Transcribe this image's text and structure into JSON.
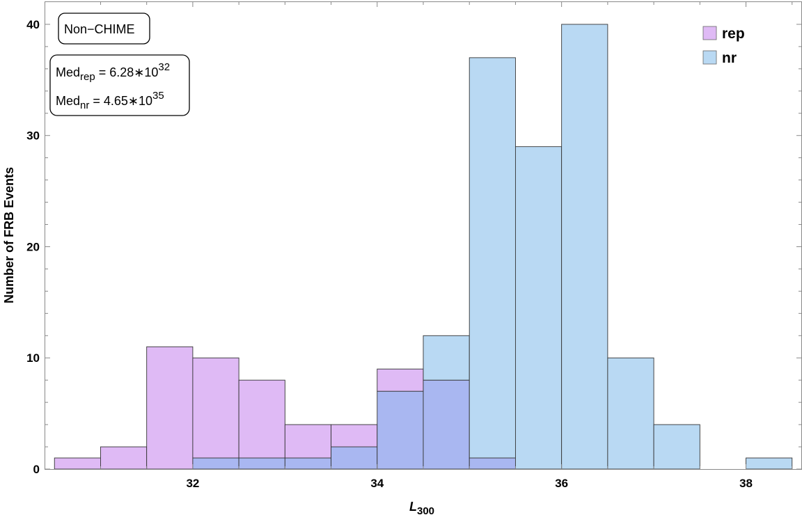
{
  "chart_data": {
    "type": "bar",
    "subtype": "overlapping-histogram",
    "xlabel_main": "L",
    "xlabel_sub": "300",
    "ylabel": "Number of FRB Events",
    "xlim": [
      30.4,
      38.6
    ],
    "ylim": [
      0,
      42
    ],
    "x_ticks": [
      32,
      34,
      36,
      38
    ],
    "y_ticks": [
      0,
      10,
      20,
      30,
      40
    ],
    "bin_width": 0.5,
    "bin_starts": [
      30.5,
      31.0,
      31.5,
      32.0,
      32.5,
      33.0,
      33.5,
      34.0,
      34.5,
      35.0,
      35.5,
      36.0,
      36.5,
      37.0,
      37.5,
      38.0
    ],
    "series": [
      {
        "name": "rep",
        "color": "#dfbaf5",
        "values": [
          1,
          2,
          11,
          10,
          8,
          4,
          4,
          9,
          8,
          1,
          0,
          0,
          0,
          0,
          0,
          0
        ]
      },
      {
        "name": "nr",
        "color": "#b9d9f3",
        "values": [
          0,
          0,
          0,
          1,
          1,
          1,
          2,
          7,
          12,
          37,
          29,
          40,
          10,
          4,
          0,
          1
        ]
      }
    ],
    "overlap_color": "#a9b7f1",
    "legend_position": "top-right",
    "annotations": {
      "label_box": "Non−CHIME",
      "median_rep": {
        "prefix": "Med",
        "sub": "rep",
        "value": " = 6.28∗10",
        "sup": "32"
      },
      "median_nr": {
        "prefix": "Med",
        "sub": "nr",
        "value": " = 4.65∗10",
        "sup": "35"
      }
    }
  }
}
